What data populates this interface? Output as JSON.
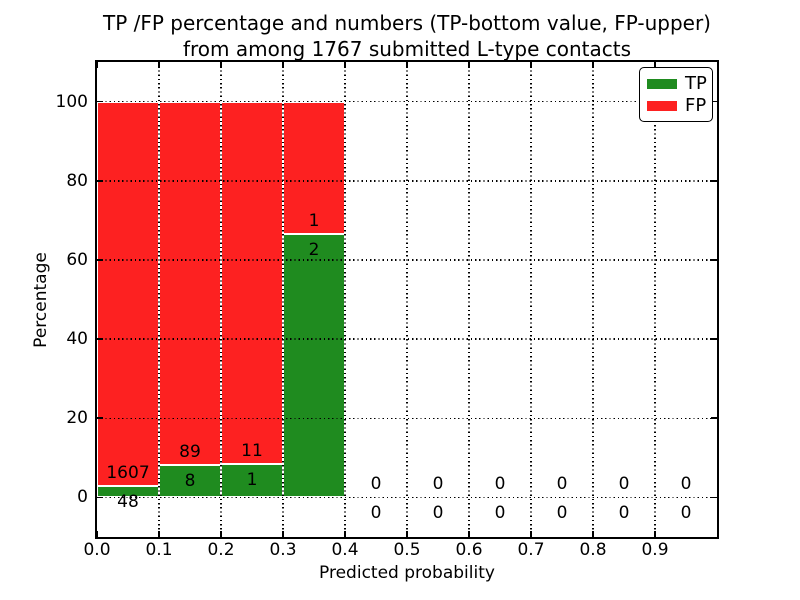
{
  "title": {
    "line1": "TP /FP percentage and numbers (TP-bottom value, FP-upper)",
    "line2": "from among 1767 submitted L-type contacts"
  },
  "chart_data": {
    "type": "bar",
    "stacked": true,
    "normalized": "each bar scaled to 100%",
    "title_lines": [
      "TP /FP percentage and numbers (TP-bottom value, FP-upper)",
      "from among 1767 submitted L-type contacts"
    ],
    "xlabel": "Predicted probability",
    "ylabel": "Percentage",
    "total_contacts": 1767,
    "bin_edges": [
      0.0,
      0.1,
      0.2,
      0.3,
      0.4,
      0.5,
      0.6,
      0.7,
      0.8,
      0.9,
      1.0
    ],
    "series": [
      {
        "name": "TP",
        "color": "#1f8b1f",
        "counts": [
          48,
          8,
          1,
          2,
          0,
          0,
          0,
          0,
          0,
          0
        ]
      },
      {
        "name": "FP",
        "color": "#fd2121",
        "counts": [
          1607,
          89,
          11,
          1,
          0,
          0,
          0,
          0,
          0,
          0
        ]
      }
    ],
    "tp_percent_per_bin": [
      2.9,
      8.2,
      8.3,
      66.7,
      0,
      0,
      0,
      0,
      0,
      0
    ],
    "xlim": [
      0.0,
      1.0
    ],
    "ylim": [
      -10,
      110
    ],
    "xtick_labels": [
      "0.0",
      "0.1",
      "0.2",
      "0.3",
      "0.4",
      "0.5",
      "0.6",
      "0.7",
      "0.8",
      "0.9"
    ],
    "xtick_values": [
      0.0,
      0.1,
      0.2,
      0.3,
      0.4,
      0.5,
      0.6,
      0.7,
      0.8,
      0.9
    ],
    "ytick_values": [
      0,
      20,
      40,
      60,
      80,
      100
    ],
    "grid": true,
    "grid_style": "dotted",
    "legend": {
      "position": "upper right",
      "entries": [
        {
          "label": "TP",
          "color": "#1f8b1f"
        },
        {
          "label": "FP",
          "color": "#fd2121"
        }
      ]
    },
    "colors": {
      "tp": "#1f8b1f",
      "fp": "#fd2121",
      "text": "#000000",
      "background": "#ffffff"
    }
  }
}
